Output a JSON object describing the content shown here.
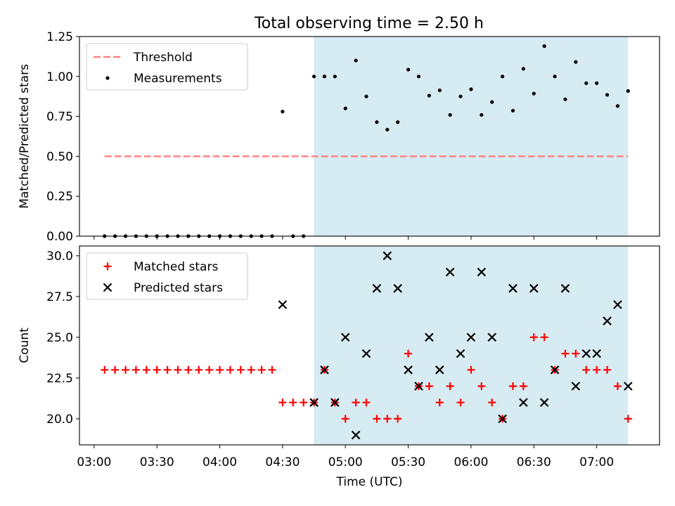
{
  "title": "Total observing time = 2.50 h",
  "colors": {
    "threshold": "#ff7f7f",
    "measurement": "#000000",
    "matched": "#ff0000",
    "predicted": "#000000",
    "span": "#add8e6"
  },
  "chart_data": [
    {
      "type": "scatter",
      "panel": "top",
      "ylabel": "Matched/Predicted stars",
      "xlabel": "",
      "ylim": [
        0,
        1.25
      ],
      "yticks": [
        "0.00",
        "0.25",
        "0.50",
        "0.75",
        "1.00",
        "1.25"
      ],
      "grid": false,
      "legend_position": "upper left",
      "shaded_span": [
        "04:45",
        "07:15"
      ],
      "threshold": {
        "name": "Threshold",
        "x_range": [
          "03:05",
          "07:15"
        ],
        "y": 0.5
      },
      "series": [
        {
          "name": "Measurements",
          "points": [
            [
              "03:05",
              0
            ],
            [
              "03:10",
              0
            ],
            [
              "03:15",
              0
            ],
            [
              "03:20",
              0
            ],
            [
              "03:25",
              0
            ],
            [
              "03:30",
              0
            ],
            [
              "03:35",
              0
            ],
            [
              "03:40",
              0
            ],
            [
              "03:45",
              0
            ],
            [
              "03:50",
              0
            ],
            [
              "03:55",
              0
            ],
            [
              "04:00",
              0
            ],
            [
              "04:05",
              0
            ],
            [
              "04:10",
              0
            ],
            [
              "04:15",
              0
            ],
            [
              "04:20",
              0
            ],
            [
              "04:25",
              0
            ],
            [
              "04:30",
              0.78
            ],
            [
              "04:35",
              0
            ],
            [
              "04:40",
              0
            ],
            [
              "04:45",
              1.0
            ],
            [
              "04:50",
              1.0
            ],
            [
              "04:55",
              1.0
            ],
            [
              "05:00",
              0.8
            ],
            [
              "05:05",
              1.1
            ],
            [
              "05:10",
              0.875
            ],
            [
              "05:15",
              0.714
            ],
            [
              "05:20",
              0.667
            ],
            [
              "05:25",
              0.714
            ],
            [
              "05:30",
              1.043
            ],
            [
              "05:35",
              1.0
            ],
            [
              "05:40",
              0.88
            ],
            [
              "05:45",
              0.913
            ],
            [
              "05:50",
              0.759
            ],
            [
              "05:55",
              0.875
            ],
            [
              "06:00",
              0.92
            ],
            [
              "06:05",
              0.759
            ],
            [
              "06:10",
              0.84
            ],
            [
              "06:15",
              1.0
            ],
            [
              "06:20",
              0.786
            ],
            [
              "06:25",
              1.048
            ],
            [
              "06:30",
              0.893
            ],
            [
              "06:35",
              1.19
            ],
            [
              "06:40",
              1.0
            ],
            [
              "06:45",
              0.857
            ],
            [
              "06:50",
              1.091
            ],
            [
              "06:55",
              0.958
            ],
            [
              "07:00",
              0.958
            ],
            [
              "07:05",
              0.885
            ],
            [
              "07:10",
              0.815
            ],
            [
              "07:15",
              0.909
            ]
          ]
        }
      ]
    },
    {
      "type": "scatter",
      "panel": "bottom",
      "ylabel": "Count",
      "xlabel": "Time (UTC)",
      "ylim": [
        18.4,
        30.6
      ],
      "yticks": [
        "20.0",
        "22.5",
        "25.0",
        "27.5",
        "30.0"
      ],
      "xlim": [
        "02:53",
        "07:30"
      ],
      "xticks": [
        "03:00",
        "03:30",
        "04:00",
        "04:30",
        "05:00",
        "05:30",
        "06:00",
        "06:30",
        "07:00"
      ],
      "grid": false,
      "legend_position": "upper left",
      "shaded_span": [
        "04:45",
        "07:15"
      ],
      "series": [
        {
          "name": "Matched stars",
          "points": [
            [
              "03:05",
              23
            ],
            [
              "03:10",
              23
            ],
            [
              "03:15",
              23
            ],
            [
              "03:20",
              23
            ],
            [
              "03:25",
              23
            ],
            [
              "03:30",
              23
            ],
            [
              "03:35",
              23
            ],
            [
              "03:40",
              23
            ],
            [
              "03:45",
              23
            ],
            [
              "03:50",
              23
            ],
            [
              "03:55",
              23
            ],
            [
              "04:00",
              23
            ],
            [
              "04:05",
              23
            ],
            [
              "04:10",
              23
            ],
            [
              "04:15",
              23
            ],
            [
              "04:20",
              23
            ],
            [
              "04:25",
              23
            ],
            [
              "04:30",
              21
            ],
            [
              "04:35",
              21
            ],
            [
              "04:40",
              21
            ],
            [
              "04:45",
              21
            ],
            [
              "04:50",
              23
            ],
            [
              "04:55",
              21
            ],
            [
              "05:00",
              20
            ],
            [
              "05:05",
              21
            ],
            [
              "05:10",
              21
            ],
            [
              "05:15",
              20
            ],
            [
              "05:20",
              20
            ],
            [
              "05:25",
              20
            ],
            [
              "05:30",
              24
            ],
            [
              "05:35",
              22
            ],
            [
              "05:40",
              22
            ],
            [
              "05:45",
              21
            ],
            [
              "05:50",
              22
            ],
            [
              "05:55",
              21
            ],
            [
              "06:00",
              23
            ],
            [
              "06:05",
              22
            ],
            [
              "06:10",
              21
            ],
            [
              "06:15",
              20
            ],
            [
              "06:20",
              22
            ],
            [
              "06:25",
              22
            ],
            [
              "06:30",
              25
            ],
            [
              "06:35",
              25
            ],
            [
              "06:40",
              23
            ],
            [
              "06:45",
              24
            ],
            [
              "06:50",
              24
            ],
            [
              "06:55",
              23
            ],
            [
              "07:00",
              23
            ],
            [
              "07:05",
              23
            ],
            [
              "07:10",
              22
            ],
            [
              "07:15",
              20
            ]
          ]
        },
        {
          "name": "Predicted stars",
          "points": [
            [
              "04:30",
              27
            ],
            [
              "04:45",
              21
            ],
            [
              "04:50",
              23
            ],
            [
              "04:55",
              21
            ],
            [
              "05:00",
              25
            ],
            [
              "05:05",
              19
            ],
            [
              "05:10",
              24
            ],
            [
              "05:15",
              28
            ],
            [
              "05:20",
              30
            ],
            [
              "05:25",
              28
            ],
            [
              "05:30",
              23
            ],
            [
              "05:35",
              22
            ],
            [
              "05:40",
              25
            ],
            [
              "05:45",
              23
            ],
            [
              "05:50",
              29
            ],
            [
              "05:55",
              24
            ],
            [
              "06:00",
              25
            ],
            [
              "06:05",
              29
            ],
            [
              "06:10",
              25
            ],
            [
              "06:15",
              20
            ],
            [
              "06:20",
              28
            ],
            [
              "06:25",
              21
            ],
            [
              "06:30",
              28
            ],
            [
              "06:35",
              21
            ],
            [
              "06:40",
              23
            ],
            [
              "06:45",
              28
            ],
            [
              "06:50",
              22
            ],
            [
              "06:55",
              24
            ],
            [
              "07:00",
              24
            ],
            [
              "07:05",
              26
            ],
            [
              "07:10",
              27
            ],
            [
              "07:15",
              22
            ]
          ]
        }
      ]
    }
  ]
}
